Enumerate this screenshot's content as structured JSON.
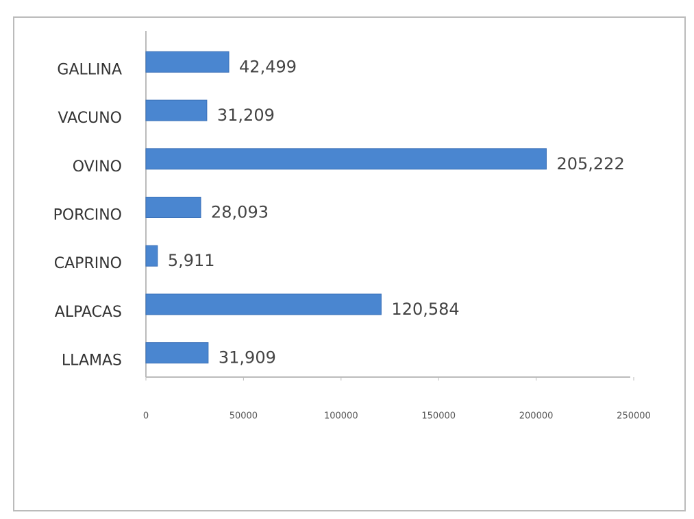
{
  "chart_data": {
    "type": "bar",
    "orientation": "horizontal",
    "categories": [
      "GALLINA",
      "VACUNO",
      "OVINO",
      "PORCINO",
      "CAPRINO",
      "ALPACAS",
      "LLAMAS"
    ],
    "values": [
      42499,
      31209,
      205222,
      28093,
      5911,
      120584,
      31909
    ],
    "value_labels": [
      "42,499",
      "31,209",
      "205,222",
      "28,093",
      "5,911",
      "120,584",
      "31,909"
    ],
    "color": "#4a86d0",
    "xlim": [
      0,
      250000
    ],
    "xticks": [
      0,
      50000,
      100000,
      150000,
      200000,
      250000
    ]
  }
}
